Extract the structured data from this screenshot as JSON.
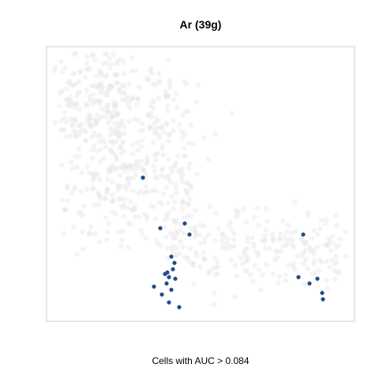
{
  "chart_data": {
    "type": "scatter",
    "title": "Ar (39g)",
    "xlabel": "Cells with AUC > 0.084",
    "ylabel": "",
    "axes_visible": false,
    "grid": false,
    "colors": {
      "background_cells": "#e6e6e6",
      "highlighted_cells": "#1f4e86",
      "frame": "#cccccc"
    },
    "xlim": [
      0,
      390
    ],
    "ylim": [
      0,
      348
    ],
    "series": [
      {
        "role": "highlighted",
        "points": [
          {
            "x": 122,
            "y": 182
          },
          {
            "x": 144,
            "y": 118
          },
          {
            "x": 175,
            "y": 124
          },
          {
            "x": 181,
            "y": 110
          },
          {
            "x": 158,
            "y": 82
          },
          {
            "x": 162,
            "y": 74
          },
          {
            "x": 153,
            "y": 62
          },
          {
            "x": 160,
            "y": 66
          },
          {
            "x": 155,
            "y": 56
          },
          {
            "x": 163,
            "y": 54
          },
          {
            "x": 150,
            "y": 60
          },
          {
            "x": 136,
            "y": 44
          },
          {
            "x": 152,
            "y": 48
          },
          {
            "x": 158,
            "y": 40
          },
          {
            "x": 146,
            "y": 34
          },
          {
            "x": 155,
            "y": 24
          },
          {
            "x": 168,
            "y": 18
          },
          {
            "x": 325,
            "y": 110
          },
          {
            "x": 319,
            "y": 56
          },
          {
            "x": 333,
            "y": 48
          },
          {
            "x": 343,
            "y": 54
          },
          {
            "x": 349,
            "y": 36
          },
          {
            "x": 350,
            "y": 28
          }
        ]
      }
    ]
  }
}
